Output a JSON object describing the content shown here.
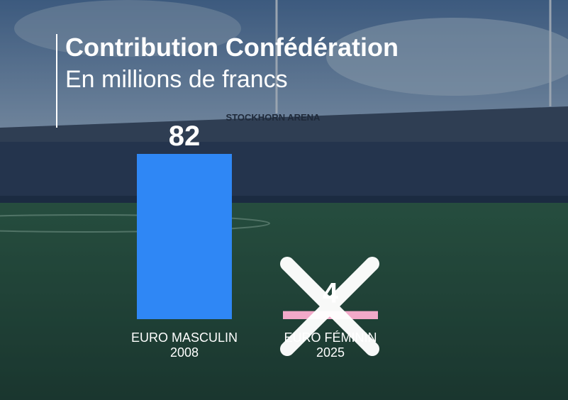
{
  "chart_data": {
    "type": "bar",
    "title": "Contribution Confédération",
    "subtitle": "En millions de francs",
    "background_text": "STOCKHORN ARENA",
    "categories": [
      [
        "EURO MASCULIN",
        "2008"
      ],
      [
        "EURO FÉMININ",
        "2025"
      ]
    ],
    "series": [
      {
        "colors": [
          "#2f87f5",
          "#f2a9c9"
        ],
        "values": [
          82,
          4
        ]
      }
    ]
  }
}
